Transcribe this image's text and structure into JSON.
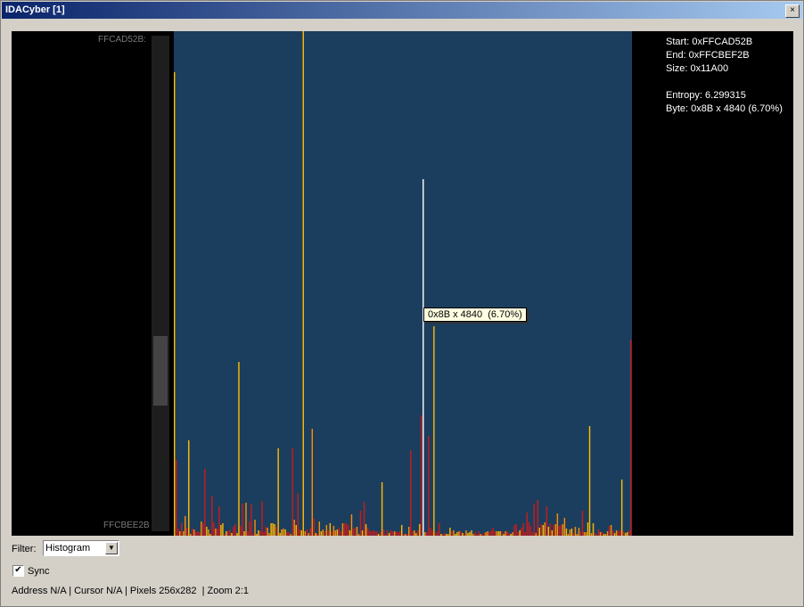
{
  "window": {
    "title": "IDACyber [1]",
    "close_glyph": "×"
  },
  "view": {
    "start_address": "FFCAD52B:",
    "end_address": "FFCBEE2B",
    "info": {
      "start": "Start: 0xFFCAD52B",
      "end": "End: 0xFFCBEF2B",
      "size": "Size: 0x11A00",
      "entropy": "Entropy: 6.299315",
      "byte": "Byte: 0x8B x 4840 (6.70%)"
    },
    "tooltip": "0x8B x 4840  (6.70%)",
    "plot_background": "#1c3e5e",
    "colors": {
      "low": "#cc1a1a",
      "mid": "#ff8c00",
      "high": "#ffbb00",
      "selected": "#ffffff"
    }
  },
  "controls": {
    "filter_label": "Filter:",
    "filter_value": "Histogram",
    "sync_label": "Sync",
    "sync_checked": true
  },
  "status": "Address N/A | Cursor N/A | Pixels 256x282  | Zoom 2:1"
}
